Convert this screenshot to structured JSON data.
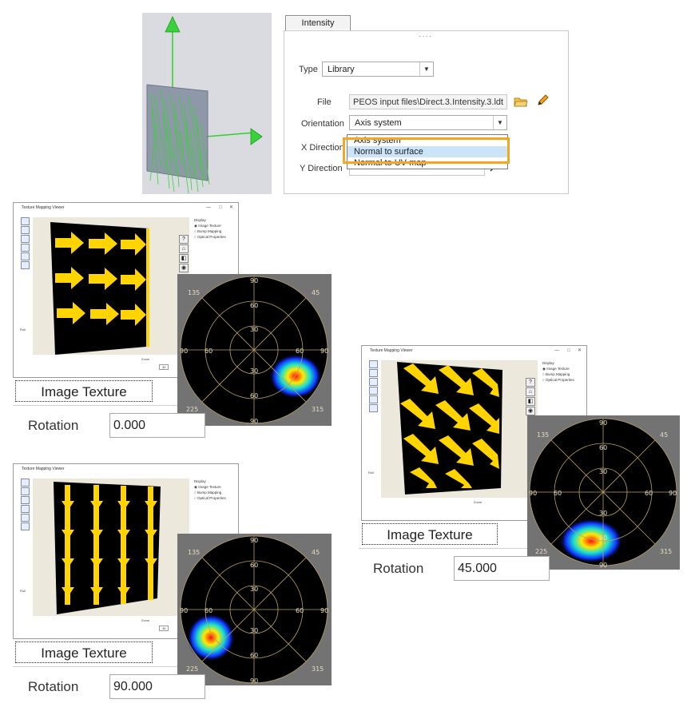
{
  "intensity_panel": {
    "tab_label": "Intensity",
    "type_label": "Type",
    "type_value": "Library",
    "file_label": "File",
    "file_value": "PEOS input files\\Direct.3.Intensity.3.ldt",
    "orientation_label": "Orientation",
    "orientation_value": "Axis system",
    "x_direction_label": "X Direction",
    "y_direction_label": "Y Direction",
    "dropdown_options": [
      "Axis system",
      "Normal to surface",
      "Normal to UV map"
    ],
    "highlighted_option": "Normal to surface",
    "highlight_color": "#f5a623"
  },
  "viewer_common": {
    "window_title": "Texture Mapping Viewer",
    "display_heading": "Display",
    "display_options": [
      "Image Texture",
      "Bump Mapping",
      "Optical Properties"
    ],
    "roll_label": "Roll",
    "zoom_label": "Zoom",
    "zoom_value": "36",
    "texture_button": "Image Texture",
    "rotation_label": "Rotation"
  },
  "polar_labels": {
    "angles": [
      "135",
      "45",
      "225",
      "315",
      "90"
    ],
    "rings": [
      "30",
      "60",
      "90"
    ]
  },
  "viewers": [
    {
      "rotation_value": "0.000",
      "arrow_direction": "right"
    },
    {
      "rotation_value": "90.000",
      "arrow_direction": "down"
    },
    {
      "rotation_value": "45.000",
      "arrow_direction": "down-right"
    }
  ],
  "colors": {
    "arrow_yellow": "#ffd400",
    "ray_green": "#3ad23a",
    "plate_gray": "#8e98a8",
    "polar_bg": "#000000",
    "polar_grid": "#b8a068"
  }
}
